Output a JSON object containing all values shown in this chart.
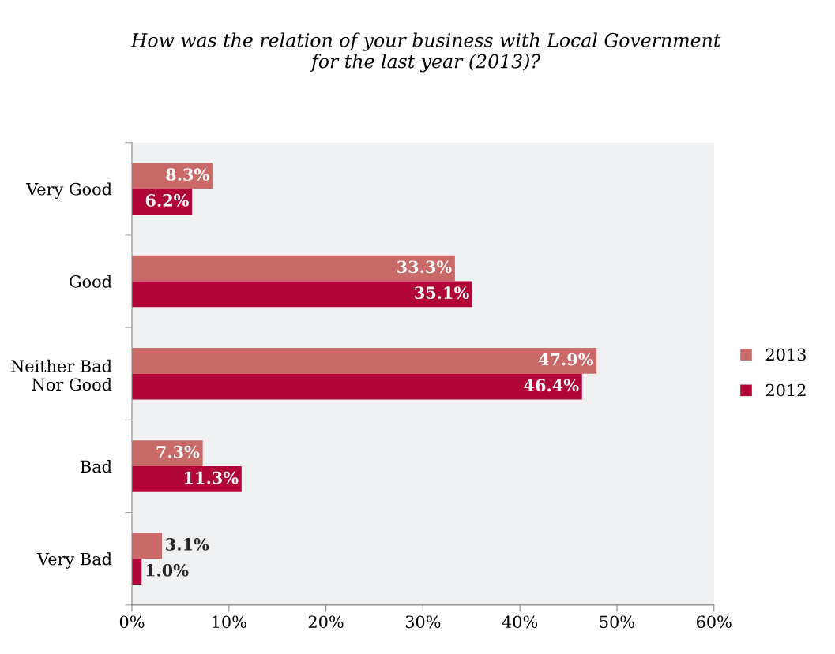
{
  "chart_data": {
    "type": "bar",
    "orientation": "horizontal",
    "title": "How was the relation of your business with Local Government\nfor the last year (2013)?",
    "categories": [
      "Very Good",
      "Good",
      "Neither Bad\nNor Good",
      "Bad",
      "Very Bad"
    ],
    "series": [
      {
        "name": "2013",
        "color": "#c96a68",
        "values": [
          8.3,
          33.3,
          47.9,
          7.3,
          3.1
        ],
        "value_labels": [
          "8.3%",
          "33.3%",
          "47.9%",
          "7.3%",
          "3.1%"
        ]
      },
      {
        "name": "2012",
        "color": "#b00536",
        "values": [
          6.2,
          35.1,
          46.4,
          11.3,
          1.0
        ],
        "value_labels": [
          "6.2%",
          "35.1%",
          "46.4%",
          "11.3%",
          "1.0%"
        ]
      }
    ],
    "xlim": [
      0,
      60
    ],
    "xticks": [
      {
        "value": 0,
        "label": "0%"
      },
      {
        "value": 10,
        "label": "10%"
      },
      {
        "value": 20,
        "label": "20%"
      },
      {
        "value": 30,
        "label": "30%"
      },
      {
        "value": 40,
        "label": "40%"
      },
      {
        "value": 50,
        "label": "50%"
      },
      {
        "value": 60,
        "label": "60%"
      }
    ],
    "grid": false,
    "legend": "right"
  }
}
